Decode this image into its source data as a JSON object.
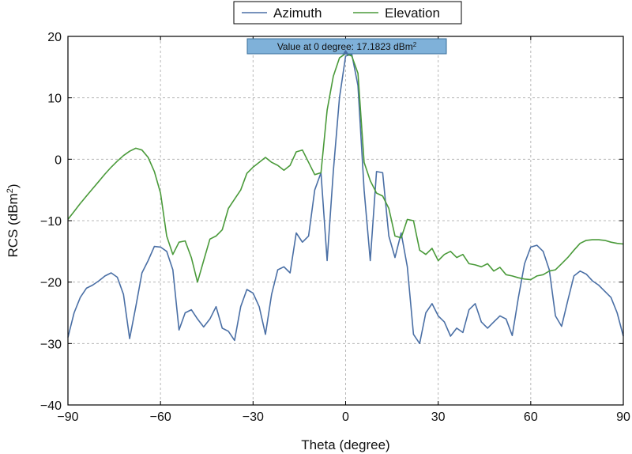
{
  "chart_data": {
    "type": "line",
    "xlabel": "Theta (degree)",
    "ylabel": {
      "prefix": "RCS (dBm",
      "sup": "2",
      "suffix": ")"
    },
    "xlim": [
      -90,
      90
    ],
    "ylim": [
      -40,
      20
    ],
    "x_ticks": [
      -90,
      -60,
      -30,
      0,
      30,
      60,
      90
    ],
    "y_ticks": [
      20,
      10,
      0,
      -10,
      -20,
      -30,
      -40
    ],
    "x_tick_labels": [
      "−90",
      "−60",
      "−30",
      "0",
      "30",
      "60",
      "90"
    ],
    "y_tick_labels": [
      "20",
      "10",
      "0",
      "−10",
      "−20",
      "−30",
      "−40"
    ],
    "grid": true,
    "legend_position": "top-center",
    "annotation": {
      "text": "Value at 0 degree: 17.1823 dBm",
      "sup": "2",
      "x": 0,
      "y": 17.1823
    },
    "series": [
      {
        "name": "Azimuth",
        "color": "#4a6fa5",
        "x": [
          -90,
          -88,
          -86,
          -84,
          -82,
          -80,
          -78,
          -76,
          -74,
          -72,
          -70,
          -68,
          -66,
          -64,
          -62,
          -60,
          -58,
          -56,
          -54,
          -52,
          -50,
          -48,
          -46,
          -44,
          -42,
          -40,
          -38,
          -36,
          -34,
          -32,
          -30,
          -28,
          -26,
          -24,
          -22,
          -20,
          -18,
          -16,
          -14,
          -12,
          -10,
          -8,
          -6,
          -4,
          -2,
          0,
          2,
          4,
          6,
          8,
          10,
          12,
          14,
          16,
          18,
          20,
          22,
          24,
          26,
          28,
          30,
          32,
          34,
          36,
          38,
          40,
          42,
          44,
          46,
          48,
          50,
          52,
          54,
          56,
          58,
          60,
          62,
          64,
          66,
          68,
          70,
          72,
          74,
          76,
          78,
          80,
          82,
          84,
          86,
          88,
          90
        ],
        "y": [
          -29,
          -25,
          -22.5,
          -21,
          -20.5,
          -19.8,
          -19,
          -18.5,
          -19.2,
          -22,
          -29.2,
          -24,
          -18.5,
          -16.5,
          -14.2,
          -14.3,
          -15,
          -18,
          -27.8,
          -25,
          -24.5,
          -26,
          -27.3,
          -26,
          -24,
          -27.5,
          -28,
          -29.5,
          -24,
          -21.2,
          -21.8,
          -24,
          -28.5,
          -22,
          -18,
          -17.5,
          -18.5,
          -12,
          -13.5,
          -12.5,
          -5,
          -2.2,
          -16.5,
          -2,
          10,
          16.8,
          17.1,
          12,
          -5,
          -16.5,
          -2,
          -2.2,
          -12.5,
          -16,
          -12,
          -17.5,
          -28.5,
          -30,
          -25,
          -23.5,
          -25.5,
          -26.5,
          -28.8,
          -27.5,
          -28.2,
          -24.5,
          -23.5,
          -26.5,
          -27.5,
          -26.5,
          -25.5,
          -26,
          -28.7,
          -22.5,
          -17,
          -14.3,
          -14,
          -15,
          -18,
          -25.5,
          -27.2,
          -23,
          -19,
          -18.2,
          -18.7,
          -19.8,
          -20.5,
          -21.5,
          -22.5,
          -25,
          -28.8
        ]
      },
      {
        "name": "Elevation",
        "color": "#4a9a3a",
        "x": [
          -90,
          -88,
          -86,
          -84,
          -82,
          -80,
          -78,
          -76,
          -74,
          -72,
          -70,
          -68,
          -66,
          -64,
          -62,
          -60,
          -58,
          -56,
          -54,
          -52,
          -50,
          -48,
          -46,
          -44,
          -42,
          -40,
          -38,
          -36,
          -34,
          -32,
          -30,
          -28,
          -26,
          -24,
          -22,
          -20,
          -18,
          -16,
          -14,
          -12,
          -10,
          -8,
          -6,
          -4,
          -2,
          0,
          2,
          4,
          6,
          8,
          10,
          12,
          14,
          16,
          18,
          20,
          22,
          24,
          26,
          28,
          30,
          32,
          34,
          36,
          38,
          40,
          42,
          44,
          46,
          48,
          50,
          52,
          54,
          56,
          58,
          60,
          62,
          64,
          66,
          68,
          70,
          72,
          74,
          76,
          78,
          80,
          82,
          84,
          86,
          88,
          90
        ],
        "y": [
          -9.8,
          -8.5,
          -7.2,
          -6,
          -4.8,
          -3.6,
          -2.4,
          -1.3,
          -0.3,
          0.6,
          1.3,
          1.8,
          1.5,
          0.3,
          -2,
          -5.5,
          -12.5,
          -15.5,
          -13.5,
          -13.3,
          -16,
          -20,
          -16.5,
          -13,
          -12.5,
          -11.5,
          -8,
          -6.5,
          -5,
          -2.3,
          -1.3,
          -0.5,
          0.3,
          -0.5,
          -1,
          -1.8,
          -1,
          1.2,
          1.5,
          -0.5,
          -2.5,
          -2.2,
          8,
          13.5,
          16.5,
          17.2,
          16.8,
          14,
          -0.5,
          -3.5,
          -5.5,
          -6,
          -8,
          -12.5,
          -12.8,
          -9.8,
          -10,
          -14.8,
          -15.5,
          -14.5,
          -16.5,
          -15.5,
          -15,
          -16,
          -15.5,
          -17,
          -17.2,
          -17.5,
          -17,
          -18.2,
          -17.6,
          -18.8,
          -19,
          -19.3,
          -19.5,
          -19.6,
          -19,
          -18.8,
          -18.2,
          -18,
          -17,
          -16,
          -14.8,
          -13.7,
          -13.2,
          -13.1,
          -13.1,
          -13.2,
          -13.5,
          -13.7,
          -13.8
        ]
      }
    ]
  }
}
